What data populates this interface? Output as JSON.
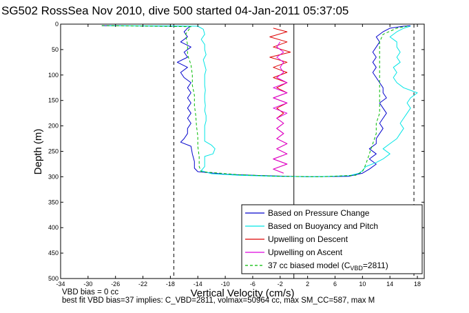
{
  "title": "SG502 RossSea Nov 2010, dive 500 started 04-Jan-2011 05:37:05",
  "notes": {
    "line1": "VBD bias = 0 cc",
    "line2": "best fit VBD bias=37 implies: C_VBD=2811, volmax=50964 cc, max SM_CC=587, max M"
  },
  "legend": {
    "entries": [
      {
        "label": "Based on Pressure Change",
        "color": "#0000cc",
        "dash": false
      },
      {
        "label": "Based on Buoyancy and Pitch",
        "color": "#00e5e5",
        "dash": false
      },
      {
        "label": "Upwelling on Descent",
        "color": "#dd0000",
        "dash": false
      },
      {
        "label": "Upwelling on Ascent",
        "color": "#dd00dd",
        "dash": false
      },
      {
        "label": "37 cc biased model (C",
        "sub": "VBD",
        "tail": "=2811)",
        "color": "#00bb00",
        "dash": true
      }
    ]
  },
  "chart_data": {
    "type": "line",
    "title": "SG502 RossSea Nov 2010, dive 500 started 04-Jan-2011 05:37:05",
    "xlabel": "Vertical Velocity (cm/s)",
    "ylabel": "Depth (m)",
    "xlim": [
      -34,
      19
    ],
    "ylim": [
      0,
      500
    ],
    "y_reversed": true,
    "xticks": [
      -34,
      -30,
      -26,
      -22,
      -18,
      -14,
      -10,
      -6,
      -2,
      2,
      6,
      10,
      14,
      18
    ],
    "yticks": [
      0,
      50,
      100,
      150,
      200,
      250,
      300,
      350,
      400,
      450,
      500
    ],
    "legend_position": "bottom-right",
    "grid": false,
    "vlines": [
      {
        "x": 0,
        "style": "solid",
        "color": "#000000"
      },
      {
        "x": -17.5,
        "style": "dashed",
        "color": "#000000"
      },
      {
        "x": 17.5,
        "style": "dashed",
        "color": "#000000"
      }
    ],
    "series": [
      {
        "name": "Based on Pressure Change",
        "color": "#0000cc",
        "dash": false,
        "points": [
          [
            -28,
            3
          ],
          [
            -15,
            4
          ],
          [
            -15.5,
            8
          ],
          [
            -16,
            15
          ],
          [
            -15.5,
            25
          ],
          [
            -16.5,
            35
          ],
          [
            -15,
            45
          ],
          [
            -16,
            55
          ],
          [
            -15.5,
            65
          ],
          [
            -17,
            75
          ],
          [
            -15.5,
            85
          ],
          [
            -16.5,
            95
          ],
          [
            -16,
            105
          ],
          [
            -15,
            115
          ],
          [
            -15.5,
            125
          ],
          [
            -15,
            135
          ],
          [
            -15.5,
            145
          ],
          [
            -15,
            155
          ],
          [
            -15.5,
            165
          ],
          [
            -15,
            175
          ],
          [
            -15.5,
            185
          ],
          [
            -15,
            195
          ],
          [
            -15.5,
            205
          ],
          [
            -15.5,
            215
          ],
          [
            -16,
            225
          ],
          [
            -16.5,
            232
          ],
          [
            -15,
            240
          ],
          [
            -14.8,
            255
          ],
          [
            -14.5,
            270
          ],
          [
            -14.5,
            283
          ],
          [
            -14,
            290
          ],
          [
            -10,
            295
          ],
          [
            -4,
            298
          ],
          [
            2,
            300
          ],
          [
            8,
            299
          ],
          [
            10,
            293
          ],
          [
            11,
            285
          ],
          [
            12,
            275
          ],
          [
            11,
            265
          ],
          [
            12,
            255
          ],
          [
            11,
            245
          ],
          [
            12,
            235
          ],
          [
            12,
            225
          ],
          [
            12.5,
            215
          ],
          [
            13,
            205
          ],
          [
            12.5,
            195
          ],
          [
            13,
            185
          ],
          [
            13.5,
            175
          ],
          [
            13,
            165
          ],
          [
            12.5,
            155
          ],
          [
            13.5,
            145
          ],
          [
            13,
            135
          ],
          [
            13,
            125
          ],
          [
            12.5,
            115
          ],
          [
            12,
            105
          ],
          [
            11.5,
            95
          ],
          [
            12,
            85
          ],
          [
            11.5,
            75
          ],
          [
            12,
            65
          ],
          [
            11.5,
            55
          ],
          [
            12,
            45
          ],
          [
            12.5,
            35
          ],
          [
            12,
            25
          ],
          [
            13,
            15
          ],
          [
            14,
            8
          ],
          [
            16,
            4
          ],
          [
            17,
            3
          ]
        ]
      },
      {
        "name": "Based on Buoyancy and Pitch",
        "color": "#00e5e5",
        "dash": false,
        "points": [
          [
            -27,
            3
          ],
          [
            -14,
            4
          ],
          [
            -13.2,
            10
          ],
          [
            -13,
            20
          ],
          [
            -13.5,
            30
          ],
          [
            -13,
            40
          ],
          [
            -13,
            50
          ],
          [
            -12.8,
            60
          ],
          [
            -13.2,
            70
          ],
          [
            -13,
            80
          ],
          [
            -12.8,
            90
          ],
          [
            -13,
            100
          ],
          [
            -13,
            110
          ],
          [
            -13,
            120
          ],
          [
            -12.9,
            130
          ],
          [
            -13,
            140
          ],
          [
            -13,
            150
          ],
          [
            -12.9,
            160
          ],
          [
            -13,
            170
          ],
          [
            -12.8,
            180
          ],
          [
            -12.8,
            190
          ],
          [
            -13,
            200
          ],
          [
            -13,
            210
          ],
          [
            -13,
            220
          ],
          [
            -13,
            230
          ],
          [
            -12,
            238
          ],
          [
            -11.5,
            245
          ],
          [
            -11.8,
            255
          ],
          [
            -13,
            260
          ],
          [
            -13,
            270
          ],
          [
            -13,
            280
          ],
          [
            -13.5,
            288
          ],
          [
            -12,
            294
          ],
          [
            -8,
            297
          ],
          [
            -3,
            299
          ],
          [
            3,
            300
          ],
          [
            8,
            298
          ],
          [
            9.5,
            293
          ],
          [
            10,
            288
          ],
          [
            10.5,
            280
          ],
          [
            12,
            272
          ],
          [
            13,
            265
          ],
          [
            14,
            255
          ],
          [
            13,
            245
          ],
          [
            14,
            235
          ],
          [
            15,
            225
          ],
          [
            15.5,
            215
          ],
          [
            16,
            205
          ],
          [
            15.5,
            195
          ],
          [
            16,
            185
          ],
          [
            16.5,
            175
          ],
          [
            17,
            165
          ],
          [
            16.5,
            155
          ],
          [
            17,
            145
          ],
          [
            18,
            135
          ],
          [
            16,
            125
          ],
          [
            15,
            115
          ],
          [
            14.5,
            105
          ],
          [
            15,
            95
          ],
          [
            14.5,
            85
          ],
          [
            15.5,
            75
          ],
          [
            15,
            65
          ],
          [
            15.5,
            55
          ],
          [
            15,
            45
          ],
          [
            15,
            35
          ],
          [
            14,
            25
          ],
          [
            15,
            15
          ],
          [
            16,
            8
          ],
          [
            17,
            4
          ]
        ]
      },
      {
        "name": "Upwelling on Descent",
        "color": "#dd0000",
        "dash": false,
        "points": [
          [
            -3,
            8
          ],
          [
            -1,
            15
          ],
          [
            -3.5,
            25
          ],
          [
            -1,
            35
          ],
          [
            -3,
            45
          ],
          [
            -0.5,
            55
          ],
          [
            -3.5,
            65
          ],
          [
            -1,
            75
          ],
          [
            -3,
            85
          ],
          [
            -1,
            95
          ],
          [
            -3,
            105
          ],
          [
            -1,
            115
          ],
          [
            -2.5,
            125
          ],
          [
            -1,
            135
          ],
          [
            -3,
            145
          ],
          [
            -1,
            155
          ],
          [
            -2.5,
            165
          ],
          [
            -1.5,
            175
          ],
          [
            -2.5,
            185
          ],
          [
            -1.5,
            195
          ],
          [
            -2.5,
            205
          ],
          [
            -1.5,
            215
          ],
          [
            -2.5,
            225
          ],
          [
            -1,
            235
          ],
          [
            -2.5,
            245
          ],
          [
            -1,
            255
          ],
          [
            -3,
            265
          ],
          [
            -1,
            275
          ],
          [
            -3,
            285
          ],
          [
            -1.5,
            293
          ]
        ]
      },
      {
        "name": "Upwelling on Ascent",
        "color": "#dd00dd",
        "dash": false,
        "points": [
          [
            -1.5,
            293
          ],
          [
            -3,
            285
          ],
          [
            -1,
            275
          ],
          [
            -3,
            265
          ],
          [
            -1,
            255
          ],
          [
            -2.5,
            245
          ],
          [
            -1,
            235
          ],
          [
            -2.5,
            225
          ],
          [
            -1.5,
            215
          ],
          [
            -2.5,
            205
          ],
          [
            -1.5,
            195
          ],
          [
            -2.5,
            185
          ],
          [
            -1,
            175
          ],
          [
            -3,
            165
          ],
          [
            -1,
            155
          ],
          [
            -3,
            145
          ],
          [
            -1,
            135
          ],
          [
            -3,
            125
          ],
          [
            -1,
            115
          ],
          [
            -2.5,
            105
          ],
          [
            -1.5,
            95
          ],
          [
            -2,
            85
          ],
          [
            -1.5,
            75
          ],
          [
            -2.5,
            65
          ],
          [
            -1.5,
            55
          ],
          [
            -2.5,
            45
          ],
          [
            -2,
            35
          ]
        ]
      },
      {
        "name": "37 cc biased model (CVBD=2811)",
        "color": "#00bb00",
        "dash": true,
        "points": [
          [
            -28,
            3
          ],
          [
            -15,
            5
          ],
          [
            -15.8,
            20
          ],
          [
            -15.5,
            40
          ],
          [
            -15.5,
            60
          ],
          [
            -15,
            80
          ],
          [
            -14.8,
            100
          ],
          [
            -14.8,
            120
          ],
          [
            -14.5,
            140
          ],
          [
            -14.5,
            160
          ],
          [
            -14.3,
            180
          ],
          [
            -14.2,
            200
          ],
          [
            -14,
            220
          ],
          [
            -14,
            240
          ],
          [
            -13.8,
            260
          ],
          [
            -13.8,
            280
          ],
          [
            -13.5,
            290
          ],
          [
            -8,
            296
          ],
          [
            -2,
            299
          ],
          [
            4,
            300
          ],
          [
            9,
            297
          ],
          [
            10,
            290
          ],
          [
            10.5,
            275
          ],
          [
            11,
            255
          ],
          [
            11.5,
            235
          ],
          [
            12,
            215
          ],
          [
            12,
            195
          ],
          [
            12.5,
            175
          ],
          [
            12.5,
            155
          ],
          [
            12.5,
            135
          ],
          [
            12.5,
            115
          ],
          [
            12.5,
            95
          ],
          [
            12.5,
            75
          ],
          [
            12.5,
            55
          ],
          [
            12.5,
            35
          ],
          [
            13,
            20
          ],
          [
            15,
            8
          ],
          [
            16.5,
            4
          ]
        ]
      }
    ]
  }
}
